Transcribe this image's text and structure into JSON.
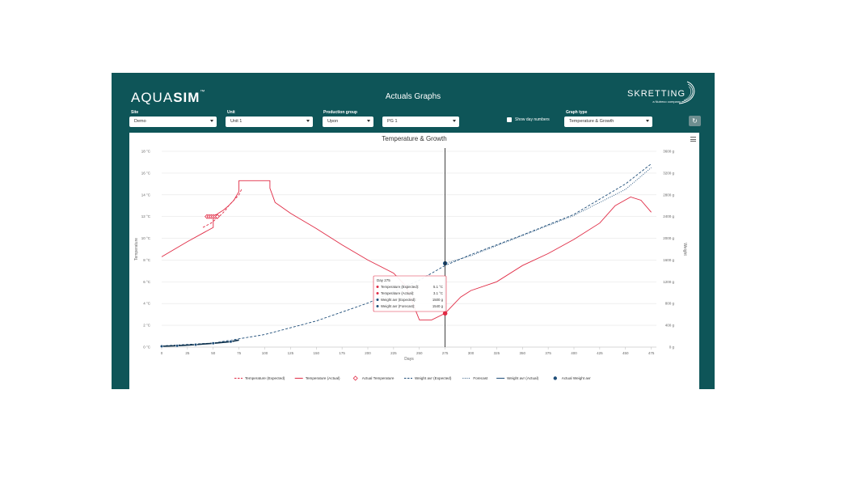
{
  "app": {
    "logo_light": "AQUA",
    "logo_bold": "SIM",
    "logo_tm": "™",
    "title": "Actuals Graphs",
    "brand_name": "SKRETTING",
    "brand_tagline": "a Nutreco company"
  },
  "controls": {
    "site": {
      "label": "Site",
      "value": "Demo"
    },
    "unit": {
      "label": "Unit",
      "value": "Unit 1"
    },
    "production_group": {
      "label": "Production group",
      "value": "Upon"
    },
    "group2": {
      "value": "PG 1"
    },
    "show_day_numbers": {
      "label": "Show day numbers",
      "checked": false
    },
    "graph_type": {
      "label": "Graph type",
      "value": "Temperature & Growth"
    },
    "refresh_icon": "refresh-icon"
  },
  "chart": {
    "title": "Temperature & Growth",
    "menu_icon": "hamburger-icon",
    "y_left_label": "Temperature",
    "y_right_label": "Weight",
    "x_label": "Days",
    "y_left_ticks": [
      "0 °C",
      "2 °C",
      "4 °C",
      "6 °C",
      "8 °C",
      "10 °C",
      "12 °C",
      "14 °C",
      "16 °C",
      "18 °C"
    ],
    "y_right_ticks": [
      "0 g",
      "400 g",
      "800 g",
      "1200 g",
      "1600 g",
      "2000 g",
      "2400 g",
      "2800 g",
      "3200 g",
      "3600 g"
    ],
    "x_ticks": [
      "0",
      "25",
      "50",
      "75",
      "100",
      "125",
      "150",
      "175",
      "200",
      "225",
      "250",
      "275",
      "300",
      "325",
      "350",
      "375",
      "400",
      "425",
      "450",
      "475"
    ],
    "tooltip": {
      "header": "Day 275",
      "rows": [
        {
          "label": "Temperature (Expected):",
          "value": "5.1 °C",
          "color": "#e02b45"
        },
        {
          "label": "Temperature (Actual):",
          "value": "3.1 °C",
          "color": "#e02b45"
        },
        {
          "label": "Weight avr (Expected):",
          "value": "1500 g",
          "color": "#1f4e79"
        },
        {
          "label": "Weight avr (Forecast):",
          "value": "1540 g",
          "color": "#1f4e79"
        }
      ]
    },
    "legend": [
      {
        "label": "Temperature (Expected)",
        "style": "dash",
        "color": "#e02b45"
      },
      {
        "label": "Temperature (Actual)",
        "style": "solid",
        "color": "#e02b45"
      },
      {
        "label": "Actual Temperature",
        "style": "diamond",
        "color": "#e02b45"
      },
      {
        "label": "Weight avr (Expected)",
        "style": "dash",
        "color": "#1f4e79"
      },
      {
        "label": "Forecast",
        "style": "dot",
        "color": "#1f4e79"
      },
      {
        "label": "Weight avr (Actual)",
        "style": "solid",
        "color": "#1f4e79"
      },
      {
        "label": "Actual Weight avr",
        "style": "circle",
        "color": "#1f4e79"
      }
    ]
  },
  "chart_data": {
    "type": "line",
    "title": "Temperature & Growth",
    "xlabel": "Days",
    "ylabel": "Temperature",
    "y2label": "Weight",
    "xlim": [
      0,
      480
    ],
    "ylim": [
      0,
      18
    ],
    "y2lim": [
      0,
      3600
    ],
    "grid": true,
    "legend_position": "bottom",
    "crosshair_x": 275,
    "series": [
      {
        "name": "Temperature (Expected)",
        "axis": "left",
        "style": "dash",
        "color": "#e02b45",
        "x": [
          40,
          48,
          53,
          58,
          62,
          65,
          68,
          72,
          75,
          78
        ],
        "y": [
          11,
          11.4,
          11.8,
          12.2,
          12.6,
          13,
          13.3,
          13.7,
          14,
          14.6
        ]
      },
      {
        "name": "Temperature (Actual)",
        "axis": "left",
        "style": "solid",
        "color": "#e02b45",
        "x": [
          0,
          25,
          50,
          50,
          55,
          60,
          65,
          70,
          75,
          75,
          105,
          105,
          110,
          125,
          150,
          175,
          200,
          225,
          237,
          250,
          262,
          275,
          290,
          300,
          325,
          350,
          375,
          400,
          425,
          440,
          455,
          465,
          475
        ],
        "y": [
          8.3,
          9.7,
          11,
          12,
          12.3,
          12.6,
          13,
          13.5,
          14.3,
          15.3,
          15.3,
          14.6,
          13.3,
          12.3,
          10.9,
          9.4,
          8,
          6.8,
          5.6,
          2.5,
          2.5,
          3.1,
          4.6,
          5.2,
          6,
          7.5,
          8.6,
          9.9,
          11.4,
          13,
          13.8,
          13.5,
          12.4
        ]
      },
      {
        "name": "Actual Temperature",
        "axis": "left",
        "style": "diamond",
        "color": "#e02b45",
        "x": [
          44,
          46,
          48,
          50,
          52,
          54
        ],
        "y": [
          12,
          12,
          12,
          12,
          12,
          12
        ]
      },
      {
        "name": "Weight avr (Expected)",
        "axis": "left-weight",
        "style": "dash",
        "color": "#1f4e79",
        "x": [
          0,
          50,
          100,
          150,
          200,
          250,
          275,
          300,
          350,
          400,
          450,
          475
        ],
        "y": [
          22,
          75,
          230,
          480,
          810,
          1230,
          1500,
          1700,
          2060,
          2440,
          3000,
          3370
        ]
      },
      {
        "name": "Forecast",
        "axis": "right",
        "style": "dot",
        "color": "#1f4e79",
        "x": [
          275,
          300,
          350,
          400,
          450,
          475
        ],
        "y": [
          1540,
          1680,
          2050,
          2420,
          2900,
          3300
        ]
      },
      {
        "name": "Weight avr (Actual)",
        "axis": "right",
        "style": "solid",
        "color": "#1f4e79",
        "x": [
          0,
          15,
          33,
          50,
          67,
          75
        ],
        "y": [
          15,
          25,
          45,
          70,
          100,
          130
        ]
      },
      {
        "name": "Actual Weight avr",
        "axis": "right",
        "style": "circle",
        "color": "#1f4e79",
        "x": [
          0,
          15,
          33,
          50,
          67,
          275
        ],
        "y": [
          15,
          25,
          45,
          70,
          100,
          1540
        ]
      }
    ]
  }
}
